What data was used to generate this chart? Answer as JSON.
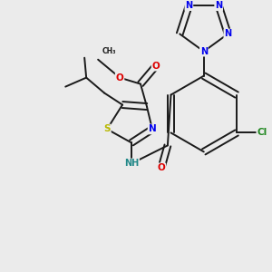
{
  "background_color": "#ebebeb",
  "bond_color": "#1a1a1a",
  "atom_colors": {
    "O": "#dd0000",
    "N": "#0000ee",
    "S": "#b8b800",
    "Cl": "#228822",
    "C": "#1a1a1a",
    "H": "#228888"
  },
  "figsize": [
    3.0,
    3.0
  ],
  "dpi": 100
}
